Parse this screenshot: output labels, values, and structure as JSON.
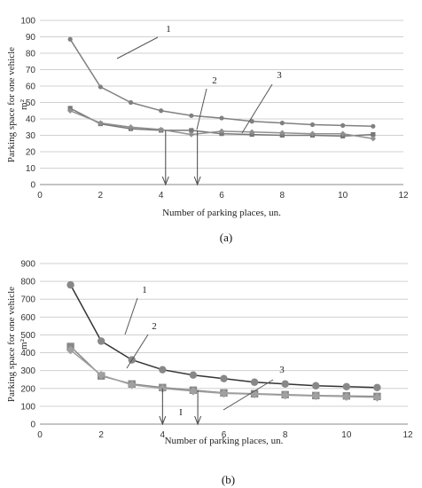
{
  "chart_data": [
    {
      "type": "line",
      "panel_label": "(a)",
      "xlabel": "Number of parking places, un.",
      "ylabel": "Parking space for one vehicle",
      "ylabel_unit": "m²",
      "xlim": [
        0,
        12
      ],
      "ylim": [
        0,
        100
      ],
      "xticks": [
        0,
        2,
        4,
        6,
        8,
        10,
        12
      ],
      "yticks": [
        0,
        10,
        20,
        30,
        40,
        50,
        60,
        70,
        80,
        90,
        100
      ],
      "grid": "horizontal",
      "series": [
        {
          "marker": "circle",
          "color": "#808080",
          "callout": "1",
          "x": [
            1,
            2,
            3,
            4,
            5,
            6,
            7,
            8,
            9,
            10,
            11
          ],
          "y": [
            88.5,
            59.5,
            50,
            45,
            42,
            40.5,
            38.5,
            37.5,
            36.5,
            36,
            35.5
          ]
        },
        {
          "marker": "square",
          "color": "#777777",
          "callout": "2",
          "x": [
            1,
            2,
            3,
            4,
            5,
            6,
            7,
            8,
            9,
            10,
            11
          ],
          "y": [
            46.5,
            37,
            34,
            33,
            33,
            31,
            30.5,
            30,
            30,
            29.5,
            30.5
          ]
        },
        {
          "marker": "diamond",
          "color": "#909090",
          "callout": "3",
          "x": [
            1,
            2,
            3,
            4,
            5,
            6,
            7,
            8,
            9,
            10,
            11
          ],
          "y": [
            45,
            37.5,
            35,
            33.5,
            30.5,
            32.5,
            32,
            31.5,
            31,
            31,
            28
          ]
        }
      ],
      "arrows": [
        {
          "x": 4.15,
          "from": 33,
          "to": 0
        },
        {
          "x": 5.2,
          "from": 33,
          "to": 0
        }
      ]
    },
    {
      "type": "line",
      "panel_label": "(b)",
      "xlabel": "Number of parking places, un.",
      "ylabel": "Parking space for one vehicle",
      "ylabel_unit": "m²",
      "xlim": [
        0,
        12
      ],
      "ylim": [
        0,
        900
      ],
      "xticks": [
        0,
        2,
        4,
        6,
        8,
        10,
        12
      ],
      "yticks": [
        0,
        100,
        200,
        300,
        400,
        500,
        600,
        700,
        800,
        900
      ],
      "grid": "horizontal",
      "series": [
        {
          "marker": "circle",
          "color": "#888888",
          "callout": "1",
          "x": [
            1,
            2,
            3,
            4,
            5,
            6,
            7,
            8,
            9,
            10,
            11
          ],
          "y": [
            780,
            465,
            360,
            305,
            275,
            255,
            235,
            225,
            215,
            210,
            205
          ]
        },
        {
          "marker": "square",
          "color": "#888888",
          "callout": "2",
          "x": [
            1,
            2,
            3,
            4,
            5,
            6,
            7,
            8,
            9,
            10,
            11
          ],
          "y": [
            435,
            270,
            225,
            205,
            190,
            175,
            170,
            165,
            160,
            158,
            155
          ]
        },
        {
          "marker": "diamond",
          "color": "#a0a0a0",
          "callout": "3",
          "x": [
            1,
            2,
            3,
            4,
            5,
            6,
            7,
            8,
            9,
            10,
            11
          ],
          "y": [
            415,
            275,
            220,
            200,
            185,
            172,
            168,
            162,
            158,
            154,
            150
          ]
        }
      ],
      "arrows": [
        {
          "x": 4,
          "from": 200,
          "to": 0
        },
        {
          "x": 5.15,
          "from": 190,
          "to": 0
        }
      ],
      "extra_mark": "I"
    }
  ]
}
